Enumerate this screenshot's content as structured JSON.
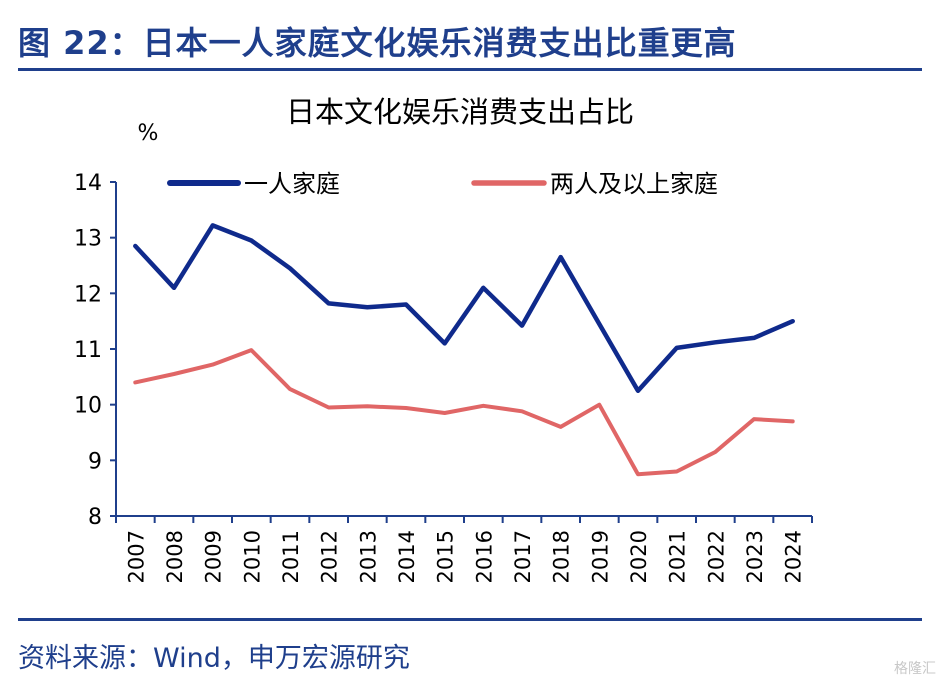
{
  "figure": {
    "title": "图 22：日本一人家庭文化娱乐消费支出比重更高",
    "source": "资料来源：Wind，申万宏源研究",
    "watermark": "格隆汇",
    "accent_color": "#1f3f8c"
  },
  "chart_data": {
    "type": "line",
    "title": "日本文化娱乐消费支出占比",
    "ylabel": "%",
    "xlabel": "",
    "ylim": [
      8,
      14
    ],
    "yticks": [
      "8",
      "9",
      "10",
      "11",
      "12",
      "13",
      "14"
    ],
    "grid": false,
    "legend_position": "top",
    "categories": [
      "2007",
      "2008",
      "2009",
      "2010",
      "2011",
      "2012",
      "2013",
      "2014",
      "2015",
      "2016",
      "2017",
      "2018",
      "2019",
      "2020",
      "2021",
      "2022",
      "2023",
      "2024"
    ],
    "series": [
      {
        "name": "一人家庭",
        "color": "#0f2a8c",
        "values": [
          12.85,
          12.1,
          13.22,
          12.95,
          12.45,
          11.82,
          11.75,
          11.8,
          11.1,
          12.1,
          11.42,
          12.65,
          11.45,
          10.25,
          11.02,
          11.12,
          11.2,
          11.5
        ]
      },
      {
        "name": "两人及以上家庭",
        "color": "#e06666",
        "values": [
          10.4,
          10.55,
          10.72,
          10.98,
          10.28,
          9.95,
          9.97,
          9.94,
          9.85,
          9.98,
          9.88,
          9.6,
          10.0,
          8.75,
          8.8,
          9.15,
          9.74,
          9.7
        ]
      }
    ]
  }
}
